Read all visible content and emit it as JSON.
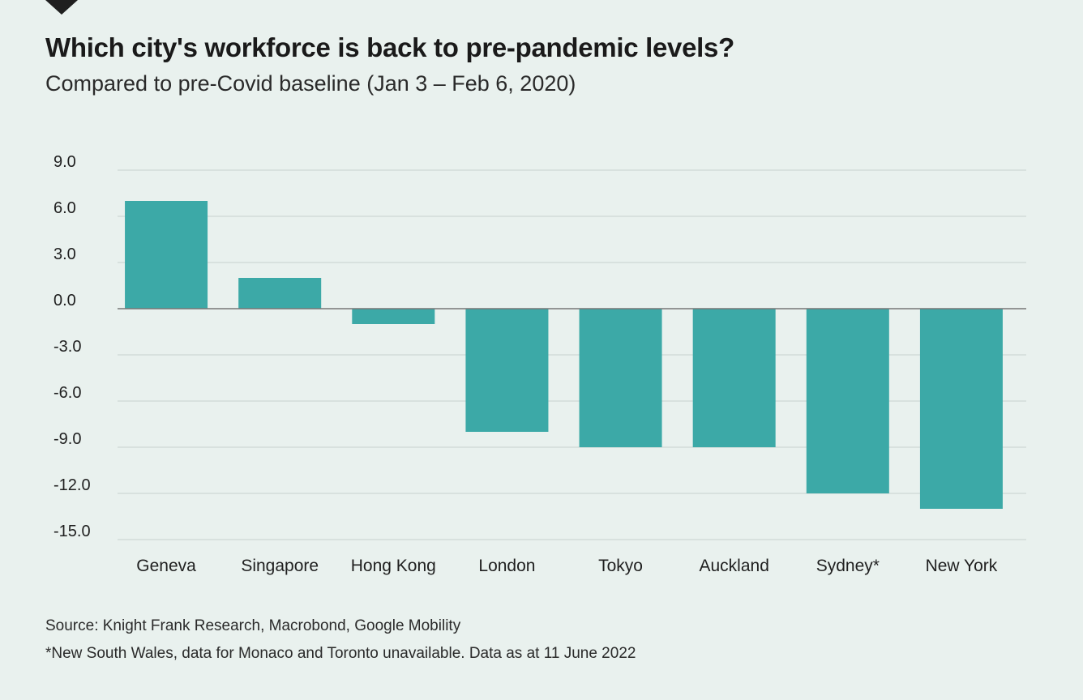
{
  "header": {
    "title": "Which city's workforce is back to pre-pandemic levels?",
    "subtitle": "Compared to pre-Covid baseline (Jan 3 – Feb 6, 2020)"
  },
  "footer": {
    "source": "Source: Knight Frank Research, Macrobond, Google Mobility",
    "note": "*New South Wales, data for Monaco and Toronto unavailable. Data as at 11 June 2022"
  },
  "colors": {
    "background": "#e9f1ee",
    "bar": "#3ca9a7",
    "grid": "#d3dcd9",
    "zero_line": "#777777",
    "text": "#1f1f1f"
  },
  "chart_data": {
    "type": "bar",
    "title": "Which city's workforce is back to pre-pandemic levels?",
    "subtitle": "Compared to pre-Covid baseline (Jan 3 – Feb 6, 2020)",
    "categories": [
      "Geneva",
      "Singapore",
      "Hong Kong",
      "London",
      "Tokyo",
      "Auckland",
      "Sydney*",
      "New York"
    ],
    "values": [
      7,
      2,
      -1,
      -8,
      -9,
      -9,
      -12,
      -13
    ],
    "yticks": [
      9,
      6,
      3,
      0,
      -3,
      -6,
      -9,
      -12,
      -15
    ],
    "ytick_labels": [
      "9.0",
      "6.0",
      "3.0",
      "0.0",
      "-3.0",
      "-6.0",
      "-9.0",
      "-12.0",
      "-15.0"
    ],
    "ylim": [
      -15,
      9
    ],
    "grid": true,
    "xlabel": "",
    "ylabel": ""
  }
}
